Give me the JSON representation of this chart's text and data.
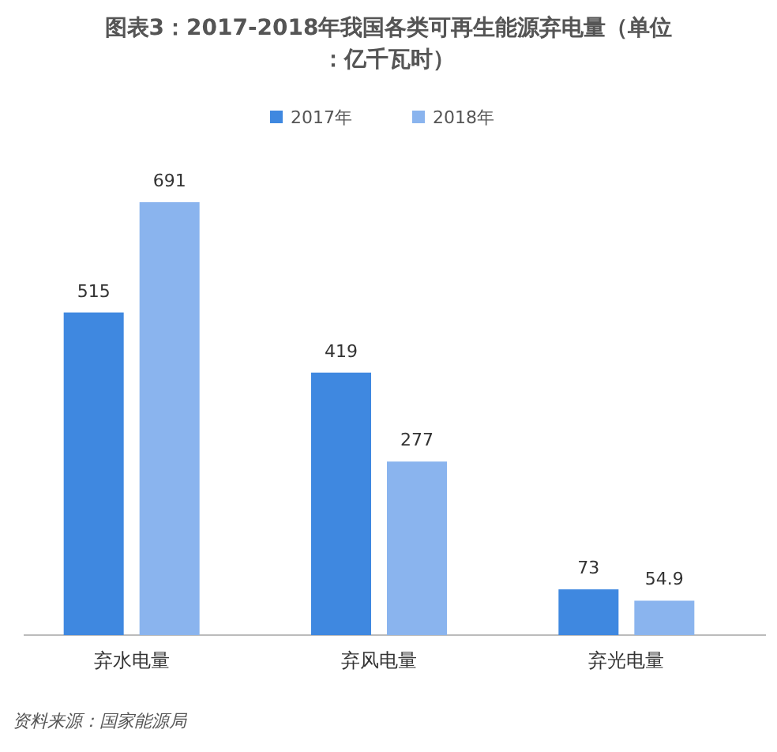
{
  "chart_data": {
    "type": "bar",
    "title": "图表3：2017-2018年我国各类可再生能源弃电量（单位：亿千瓦时）",
    "categories": [
      "弃水电量",
      "弃风电量",
      "弃光电量"
    ],
    "series": [
      {
        "name": "2017年",
        "color": "#3f88e0",
        "values": [
          515,
          419,
          73
        ]
      },
      {
        "name": "2018年",
        "color": "#8ab4ee",
        "values": [
          691,
          277,
          54.9
        ]
      }
    ],
    "data_labels": true,
    "legend": "top",
    "annotations": [
      "资料来源：国家能源局"
    ]
  }
}
